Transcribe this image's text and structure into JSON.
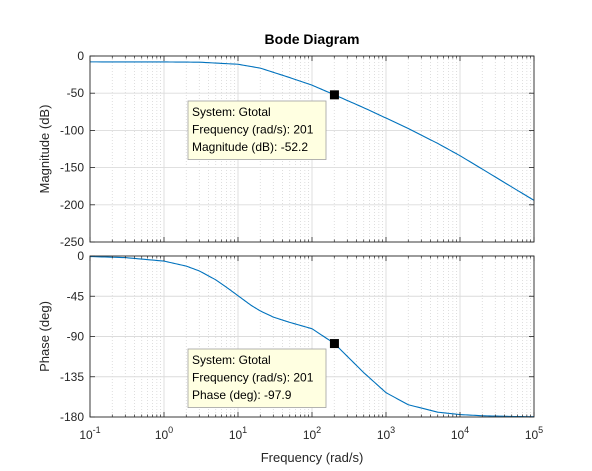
{
  "chart_data": {
    "type": "line",
    "title": "Bode Diagram",
    "xlabel": "Frequency  (rad/s)",
    "xscale": "log",
    "xlim": [
      0.1,
      100000
    ],
    "x_ticks": [
      {
        "base": "10",
        "exp": "-1"
      },
      {
        "base": "10",
        "exp": "0"
      },
      {
        "base": "10",
        "exp": "1"
      },
      {
        "base": "10",
        "exp": "2"
      },
      {
        "base": "10",
        "exp": "3"
      },
      {
        "base": "10",
        "exp": "4"
      },
      {
        "base": "10",
        "exp": "5"
      }
    ],
    "grid": true,
    "line_color": "#0072bd",
    "panels": [
      {
        "name": "magnitude",
        "ylabel": "Magnitude (dB)",
        "ylim": [
          -250,
          0
        ],
        "yticks": [
          0,
          -50,
          -100,
          -150,
          -200,
          -250
        ],
        "series": {
          "x": [
            0.1,
            1,
            3,
            10,
            20,
            50,
            100,
            201,
            500,
            1000,
            2000,
            5000,
            10000,
            20000,
            50000,
            100000
          ],
          "y": [
            -7.9,
            -8.0,
            -8.3,
            -11.1,
            -16.3,
            -29.0,
            -39.2,
            -52.2,
            -69.5,
            -83.4,
            -97.5,
            -117.5,
            -134.0,
            -152.0,
            -176.0,
            -194.0
          ]
        },
        "datatip": {
          "x": 201,
          "y": -52.2,
          "lines": [
            "System: Gtotal",
            "Frequency (rad/s): 201",
            "Magnitude (dB): -52.2"
          ]
        }
      },
      {
        "name": "phase",
        "ylabel": "Phase (deg)",
        "ylim": [
          -180,
          0
        ],
        "yticks": [
          0,
          -45,
          -90,
          -135,
          -180
        ],
        "series": {
          "x": [
            0.1,
            0.3,
            1,
            2,
            3,
            5,
            7,
            10,
            15,
            20,
            30,
            50,
            100,
            201,
            500,
            1000,
            2000,
            5000,
            10000,
            20000,
            50000,
            100000
          ],
          "y": [
            -0.6,
            -1.8,
            -5.7,
            -11.3,
            -16.7,
            -26.6,
            -35.0,
            -44.4,
            -55.1,
            -61.4,
            -68.3,
            -74.2,
            -81.3,
            -97.9,
            -130.4,
            -152.8,
            -166.3,
            -174.6,
            -177.3,
            -178.6,
            -179.4,
            -179.7
          ]
        },
        "datatip": {
          "x": 201,
          "y": -97.9,
          "lines": [
            "System: Gtotal",
            "Frequency (rad/s): 201",
            "Phase (deg): -97.9"
          ]
        }
      }
    ]
  }
}
